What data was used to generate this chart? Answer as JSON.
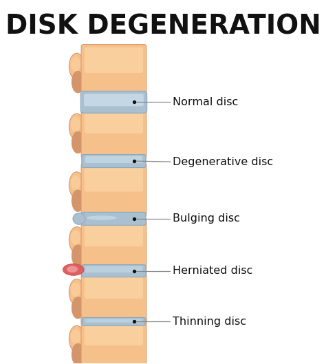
{
  "title": "DISK DEGENERATION",
  "background_color": "#ffffff",
  "title_fontsize": 28,
  "title_fontweight": "bold",
  "title_color": "#111111",
  "vertebra_color": "#F5C08A",
  "vertebra_highlight": "#FDDCB0",
  "vertebra_edge": "#D4956A",
  "disc_normal_color": "#AABFD0",
  "disc_normal_top": "#C8DDE8",
  "disc_degen_color": "#AABFD0",
  "disc_bulge_color": "#AABFD0",
  "disc_hern_color": "#AABFD0",
  "disc_thin_color": "#AABFD0",
  "disc_edge": "#8AAABB",
  "hern_red": "#E06060",
  "hern_pink": "#F0A0A0",
  "label_color": "#111111",
  "label_fontsize": 11.5,
  "dot_color": "#111111",
  "line_color": "#888888",
  "labels": [
    "Normal disc",
    "Degenerative disc",
    "Bulging disc",
    "Herniated disc",
    "Thinning disc"
  ]
}
